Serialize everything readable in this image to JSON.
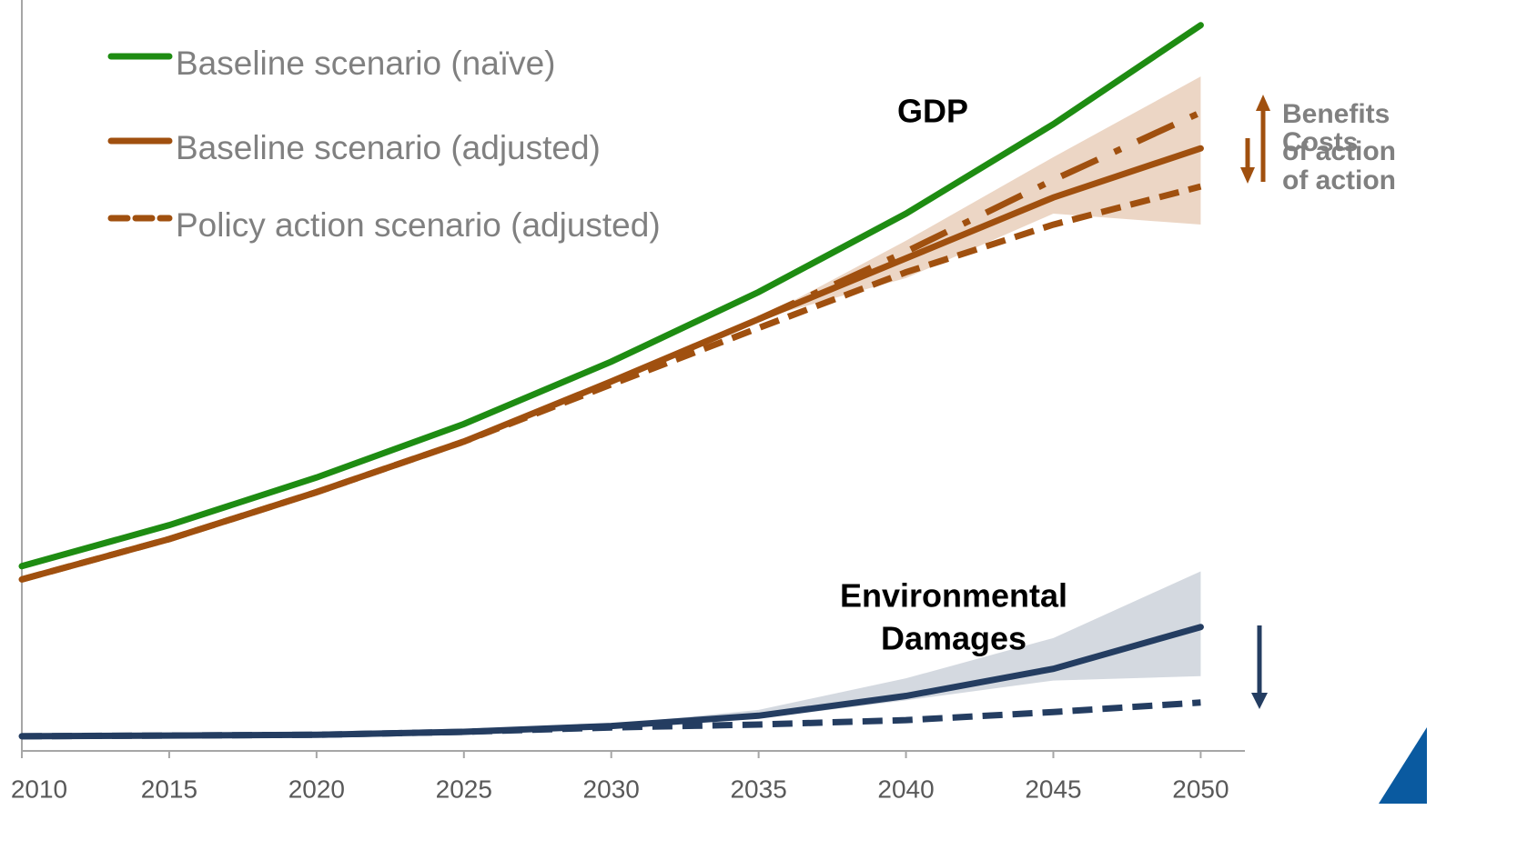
{
  "chart_data": {
    "type": "line",
    "x": [
      2010,
      2015,
      2020,
      2025,
      2030,
      2035,
      2040,
      2045,
      2050
    ],
    "xlim": [
      2010,
      2051.5
    ],
    "xticks": [
      2010,
      2015,
      2020,
      2025,
      2030,
      2035,
      2040,
      2045,
      2050
    ],
    "ylim": [
      0,
      101.2
    ],
    "series": [
      {
        "name": "Baseline scenario (naïve)",
        "color": "#1e8c12",
        "style": "solid",
        "values": [
          25.2,
          30.8,
          37.3,
          44.6,
          53.1,
          62.6,
          73.3,
          85.5,
          99.0
        ]
      },
      {
        "name": "Baseline scenario (adjusted)",
        "color": "#a0500f",
        "style": "solid",
        "values": [
          23.4,
          28.9,
          35.3,
          42.2,
          50.4,
          58.9,
          67.2,
          75.5,
          82.2
        ]
      },
      {
        "name": "Policy action scenario (adjusted)",
        "color": "#a0500f",
        "style": "dashed",
        "values": [
          23.4,
          28.9,
          35.3,
          42.2,
          50.0,
          57.7,
          65.3,
          71.8,
          77.0
        ]
      },
      {
        "color": "#a0500f",
        "style": "dashdot",
        "values": [
          null,
          null,
          null,
          null,
          null,
          58.9,
          68.1,
          77.9,
          87.1
        ]
      },
      {
        "color": "#243d61",
        "style": "solid",
        "values": [
          2.0,
          2.1,
          2.2,
          2.6,
          3.4,
          4.8,
          7.5,
          11.2,
          16.9
        ]
      },
      {
        "color": "#243d61",
        "style": "dashed",
        "values": [
          2.0,
          2.1,
          2.2,
          2.6,
          3.2,
          3.6,
          4.2,
          5.3,
          6.6
        ]
      }
    ],
    "bands": [
      {
        "color": "#e6c8b2",
        "upper": [
          null,
          null,
          null,
          null,
          null,
          58.9,
          69.6,
          81.0,
          92.0
        ],
        "lower": [
          null,
          null,
          null,
          null,
          null,
          58.9,
          64.5,
          73.3,
          71.8
        ]
      },
      {
        "color": "#c5ccd6",
        "upper": [
          null,
          null,
          null,
          null,
          3.6,
          5.6,
          9.9,
          15.4,
          24.5
        ],
        "lower": [
          null,
          null,
          null,
          null,
          3.4,
          4.4,
          6.9,
          9.6,
          10.2
        ]
      }
    ],
    "annotations": {
      "gdp": "GDP",
      "damages": [
        "Environmental",
        "Damages"
      ],
      "benefits": [
        "Benefits",
        "of action"
      ],
      "costs": [
        "Costs",
        "of action"
      ]
    }
  }
}
